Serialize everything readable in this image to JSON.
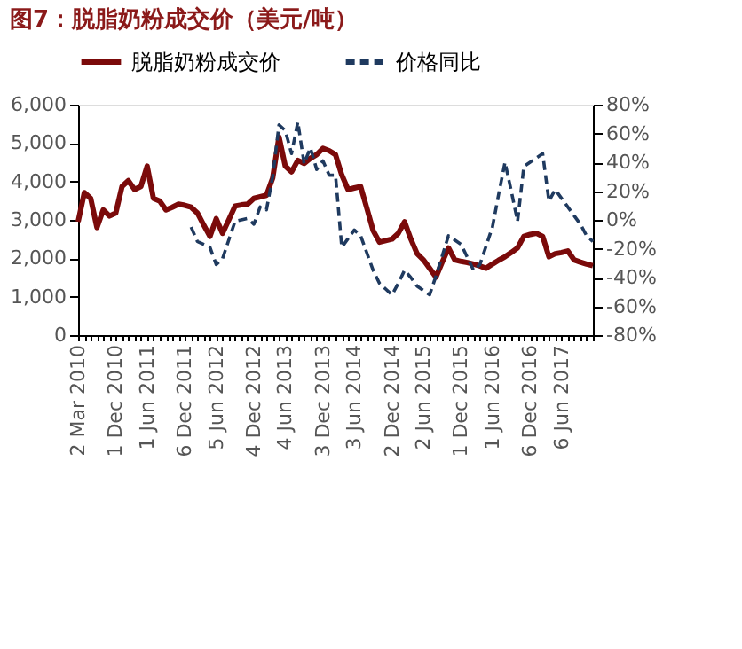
{
  "chart_data": {
    "type": "line",
    "title": "图7：脱脂奶粉成交价（美元/吨）",
    "categories": [
      "2 Mar 2010",
      null,
      null,
      null,
      null,
      null,
      "1 Dec 2010",
      null,
      null,
      null,
      null,
      "1 Jun 2011",
      null,
      null,
      null,
      null,
      null,
      "6 Dec 2011",
      null,
      null,
      null,
      null,
      "5 Jun 2012",
      null,
      null,
      null,
      null,
      null,
      "4 Dec 2012",
      null,
      null,
      null,
      null,
      "4 Jun 2013",
      null,
      null,
      null,
      null,
      null,
      "3 Dec 2013",
      null,
      null,
      null,
      null,
      "3 Jun 2014",
      null,
      null,
      null,
      null,
      null,
      "2 Dec 2014",
      null,
      null,
      null,
      null,
      "2 Jun 2015",
      null,
      null,
      null,
      null,
      null,
      "1 Dec 2015",
      null,
      null,
      null,
      null,
      "1 Jun 2016",
      null,
      null,
      null,
      null,
      null,
      "6 Dec 2016",
      null,
      null,
      null,
      null,
      "6 Jun 2017",
      null,
      null,
      null,
      null,
      null
    ],
    "series": [
      {
        "name": "脱脂奶粉成交价",
        "color": "#7b0a0a",
        "line_style": "solid",
        "values": [
          2950,
          3710,
          3560,
          2800,
          3260,
          3100,
          3180,
          3870,
          4020,
          3790,
          3870,
          4400,
          3560,
          3490,
          3260,
          3330,
          3410,
          3380,
          3330,
          3180,
          2870,
          2570,
          3030,
          2650,
          3000,
          3360,
          3390,
          3410,
          3560,
          3600,
          3640,
          4090,
          5160,
          4400,
          4250,
          4550,
          4470,
          4600,
          4700,
          4860,
          4800,
          4700,
          4170,
          3790,
          3830,
          3870,
          3300,
          2720,
          2420,
          2460,
          2500,
          2650,
          2950,
          2500,
          2120,
          1960,
          1740,
          1510,
          1900,
          2270,
          1960,
          1920,
          1890,
          1850,
          1800,
          1740,
          1850,
          1950,
          2040,
          2150,
          2270,
          2570,
          2620,
          2650,
          2570,
          2040,
          2120,
          2150,
          2190,
          1960,
          1900,
          1850,
          1810
        ]
      },
      {
        "name": "价格同比",
        "color": "#1f3a5f",
        "line_style": "dashed",
        "axis": "y2",
        "values": [
          null,
          null,
          null,
          null,
          null,
          null,
          null,
          null,
          null,
          null,
          null,
          null,
          null,
          null,
          null,
          null,
          null,
          null,
          -5,
          -15,
          -17,
          -19,
          -31,
          -27,
          -14,
          -1,
          0,
          1,
          -3,
          9,
          7,
          30,
          66,
          62,
          46,
          68,
          39,
          50,
          35,
          41,
          31,
          31,
          -19,
          -13,
          -7,
          -11,
          -23,
          -35,
          -44,
          -48,
          -52,
          -44,
          -35,
          -40,
          -46,
          -49,
          -52,
          -39,
          -25,
          -11,
          -14,
          -17,
          -26,
          -35,
          -31,
          -18,
          -5,
          18,
          40,
          20,
          -1,
          37,
          40,
          43,
          46,
          13,
          21,
          15,
          9,
          3,
          -3,
          -11,
          -15
        ]
      }
    ],
    "ylim": [
      0,
      6000
    ],
    "yticks": [
      0,
      {
        "value": 1000,
        "label": "1,000"
      },
      {
        "value": 2000,
        "label": "2,000"
      },
      {
        "value": 3000,
        "label": "3,000"
      },
      {
        "value": 4000,
        "label": "4,000"
      },
      {
        "value": 5000,
        "label": "5,000"
      },
      {
        "value": 6000,
        "label": "6,000"
      }
    ],
    "y2lim": [
      -80,
      80
    ],
    "y2ticks": [
      {
        "value": -80,
        "label": "-80%"
      },
      {
        "value": -60,
        "label": "-60%"
      },
      {
        "value": -40,
        "label": "-40%"
      },
      {
        "value": -20,
        "label": "-20%"
      },
      {
        "value": 0,
        "label": "0%"
      },
      {
        "value": 20,
        "label": "20%"
      },
      {
        "value": 40,
        "label": "40%"
      },
      {
        "value": 60,
        "label": "60%"
      },
      {
        "value": 80,
        "label": "80%"
      }
    ],
    "grid": false,
    "legend": "top"
  }
}
